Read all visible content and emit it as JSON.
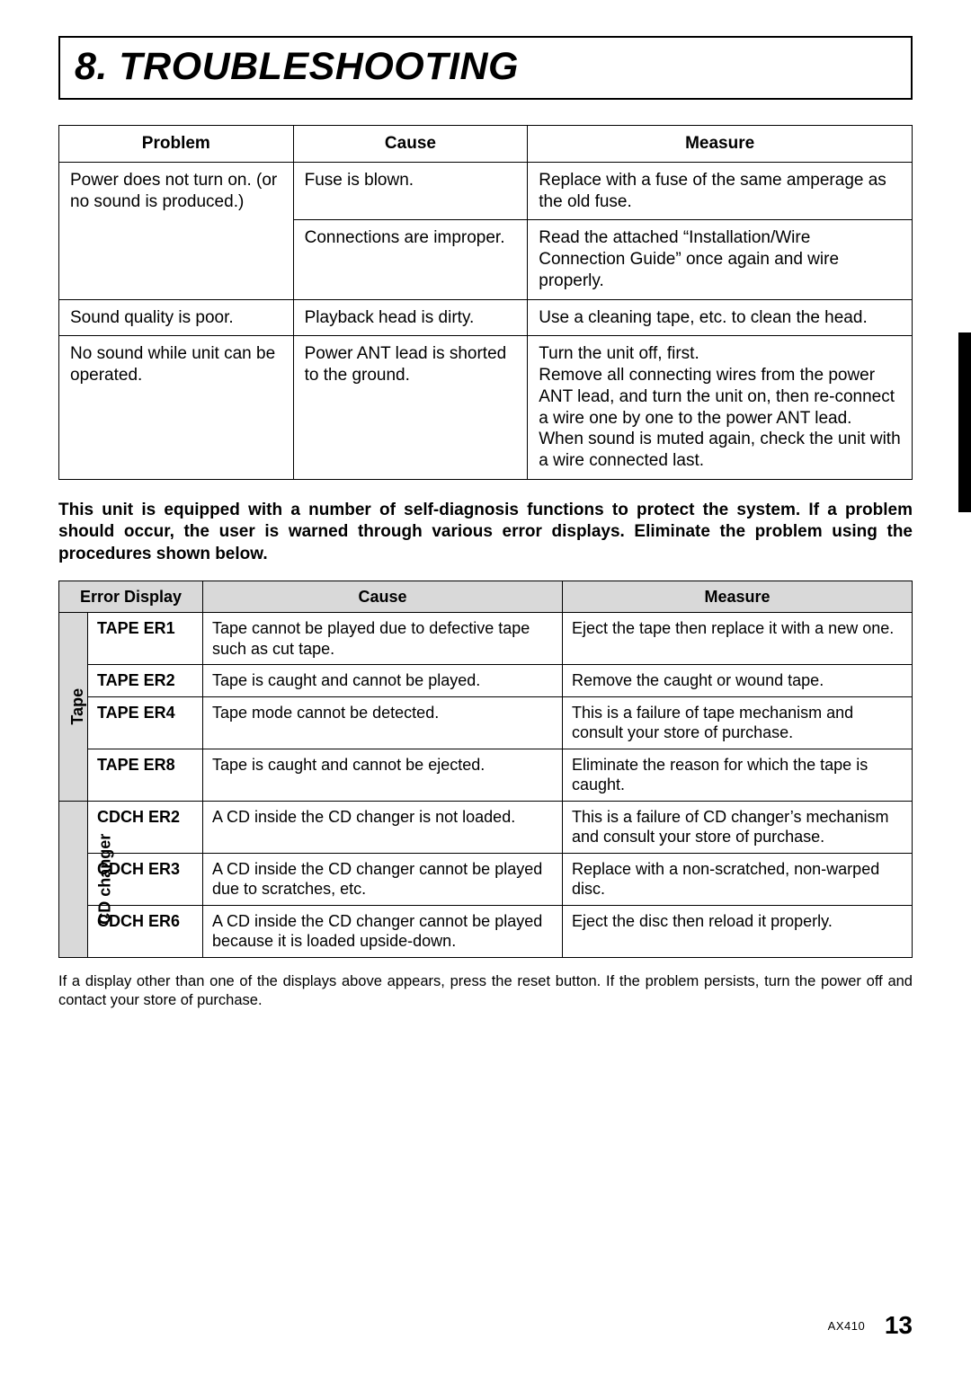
{
  "title": "8. TROUBLESHOOTING",
  "table1": {
    "headers": {
      "problem": "Problem",
      "cause": "Cause",
      "measure": "Measure"
    },
    "rows": [
      {
        "problem": "Power does not turn on. (or no sound is produced.)",
        "cause": "Fuse is blown.",
        "measure": "Replace with a fuse of the same amperage as the old fuse."
      },
      {
        "problem": "",
        "cause": "Connections are improper.",
        "measure": "Read the attached “Installation/Wire Connection Guide” once again and wire properly."
      },
      {
        "problem": "Sound quality is poor.",
        "cause": "Playback head is dirty.",
        "measure": "Use a cleaning tape, etc. to clean the head."
      },
      {
        "problem": "No sound while unit can be operated.",
        "cause": "Power ANT lead is shorted to the ground.",
        "measure": "Turn the unit off, first.\nRemove all connecting wires from the power ANT lead, and turn the unit on, then re-connect a wire one by one to the power ANT lead.\nWhen sound is muted again, check the unit with a wire connected last."
      }
    ]
  },
  "intro": "This unit is equipped with a number of self-diagnosis functions to protect the system. If a problem should occur, the user is warned through various error displays. Eliminate the problem using the procedures shown below.",
  "table2": {
    "headers": {
      "error": "Error Display",
      "cause": "Cause",
      "measure": "Measure"
    },
    "groups": [
      {
        "label": "Tape",
        "rows": [
          {
            "code": "TAPE  ER1",
            "cause": "Tape cannot be played due to defective tape such as cut tape.",
            "measure": "Eject the tape then replace it with a new one."
          },
          {
            "code": "TAPE  ER2",
            "cause": "Tape is caught and cannot be played.",
            "measure": "Remove the caught or wound tape."
          },
          {
            "code": "TAPE  ER4",
            "cause": "Tape mode cannot be detected.",
            "measure": "This is a failure of tape mechanism and consult your store of purchase."
          },
          {
            "code": "TAPE  ER8",
            "cause": "Tape is caught and cannot be ejected.",
            "measure": "Eliminate the reason for which the tape is caught."
          }
        ]
      },
      {
        "label": "CD changer",
        "rows": [
          {
            "code": "CDCH  ER2",
            "cause": "A CD inside the CD changer is not loaded.",
            "measure": "This is a failure of CD changer’s mechanism and consult your store of purchase."
          },
          {
            "code": "CDCH  ER3",
            "cause": "A CD inside the CD changer cannot be played due to scratches, etc.",
            "measure": "Replace with a non-scratched, non-warped disc."
          },
          {
            "code": "CDCH  ER6",
            "cause": "A CD inside the CD changer cannot be played because it is loaded upside-down.",
            "measure": "Eject the disc then reload it properly."
          }
        ]
      }
    ]
  },
  "footnote": "If a display other than one of the displays above appears, press the reset button. If the problem persists, turn the power off and contact your store of purchase.",
  "footer": {
    "model": "AX410",
    "page": "13"
  },
  "colors": {
    "header_bg": "#d9d9d9",
    "border": "#000000",
    "text": "#000000",
    "background": "#ffffff"
  },
  "fonts": {
    "title_pt": 43,
    "body_pt": 19,
    "table2_pt": 18,
    "footnote_pt": 16.5,
    "pagenum_pt": 28
  }
}
